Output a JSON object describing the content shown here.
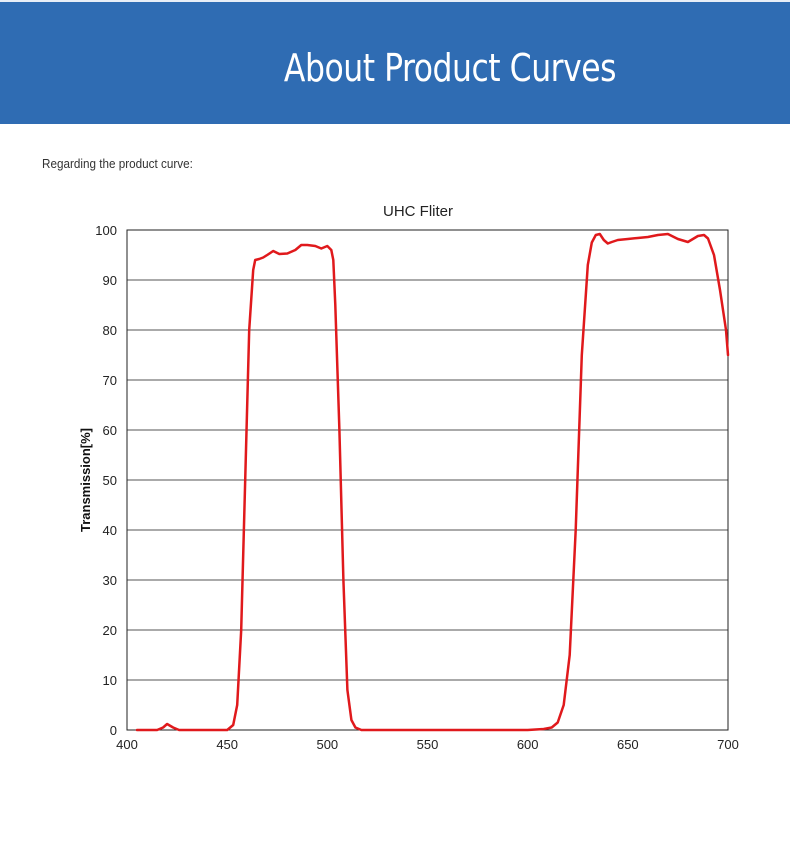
{
  "header": {
    "title": "About Product Curves",
    "bg_color": "#2f6cb3"
  },
  "intro_text": "Regarding the product curve:",
  "chart_data": {
    "type": "line",
    "title": "UHC Fliter",
    "xlabel": "",
    "ylabel": "Transmission[%]",
    "xlim": [
      400,
      700
    ],
    "ylim": [
      0,
      100
    ],
    "x_ticks": [
      400,
      450,
      500,
      550,
      600,
      650,
      700
    ],
    "y_ticks": [
      0,
      10,
      20,
      30,
      40,
      50,
      60,
      70,
      80,
      90,
      100
    ],
    "grid": "horizontal",
    "line_color": "#e0191c",
    "series": [
      {
        "x": [
          405,
          410,
          415,
          418,
          420,
          423,
          426,
          430,
          440,
          450,
          453,
          455,
          457,
          459,
          461,
          463,
          464,
          466,
          468,
          470,
          473,
          476,
          480,
          484,
          487,
          490,
          494,
          497,
          500,
          502,
          503,
          504,
          506,
          508,
          510,
          512,
          514,
          517,
          520,
          540,
          560,
          580,
          600,
          608,
          612,
          615,
          618,
          621,
          624,
          627,
          630,
          632,
          634,
          636,
          638,
          640,
          642,
          645,
          650,
          655,
          660,
          665,
          670,
          675,
          680,
          685,
          688,
          690,
          693,
          696,
          699,
          700
        ],
        "y": [
          0,
          0,
          0,
          0.5,
          1.2,
          0.5,
          0,
          0,
          0,
          0,
          1,
          5,
          20,
          50,
          80,
          92,
          94,
          94.2,
          94.5,
          95,
          95.8,
          95.2,
          95.3,
          96,
          97,
          97,
          96.8,
          96.3,
          96.8,
          96,
          94,
          85,
          60,
          30,
          8,
          2,
          0.5,
          0,
          0,
          0,
          0,
          0,
          0,
          0.2,
          0.5,
          1.5,
          5,
          15,
          40,
          75,
          93,
          97.5,
          99,
          99.2,
          98,
          97.3,
          97.6,
          98,
          98.2,
          98.4,
          98.6,
          99,
          99.2,
          98.2,
          97.6,
          98.8,
          99,
          98.3,
          95,
          88,
          80,
          75
        ]
      }
    ]
  }
}
